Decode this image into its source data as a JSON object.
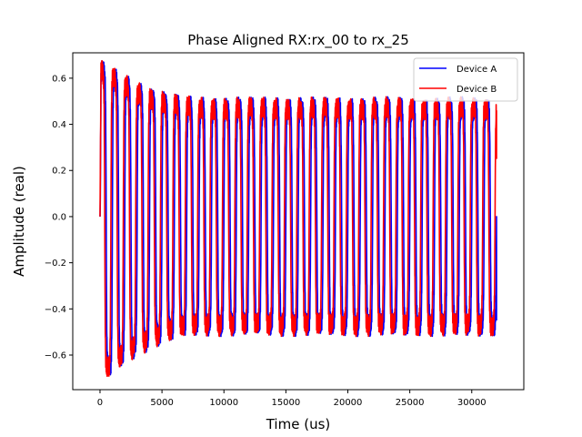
{
  "chart_data": {
    "type": "line",
    "title": "Phase Aligned RX:rx_00 to rx_25",
    "xlabel": "Time (us)",
    "ylabel": "Amplitude (real)",
    "xlim": [
      -2200,
      34200
    ],
    "ylim": [
      -0.75,
      0.71
    ],
    "xticks": [
      0,
      5000,
      10000,
      15000,
      20000,
      25000,
      30000
    ],
    "yticks": [
      -0.6,
      -0.4,
      -0.2,
      0.0,
      0.2,
      0.4,
      0.6
    ],
    "xtick_labels": [
      "0",
      "5000",
      "10000",
      "15000",
      "20000",
      "25000",
      "30000"
    ],
    "ytick_labels": [
      "−0.6",
      "−0.4",
      "−0.2",
      "0.0",
      "0.2",
      "0.4",
      "0.6"
    ],
    "grid": false,
    "legend_position": "top-right",
    "signal": {
      "x_start": 0,
      "x_end": 32000,
      "period": 1000,
      "initial_peak": 0.64,
      "initial_trough": -0.69,
      "steady_peak": 0.47,
      "steady_trough": -0.47,
      "settle_time": 9000
    },
    "series": [
      {
        "name": "Device A",
        "color": "#0000ff",
        "phase_offset_us": 0
      },
      {
        "name": "Device B",
        "color": "#ff0000",
        "phase_offset_us": -120
      }
    ]
  }
}
